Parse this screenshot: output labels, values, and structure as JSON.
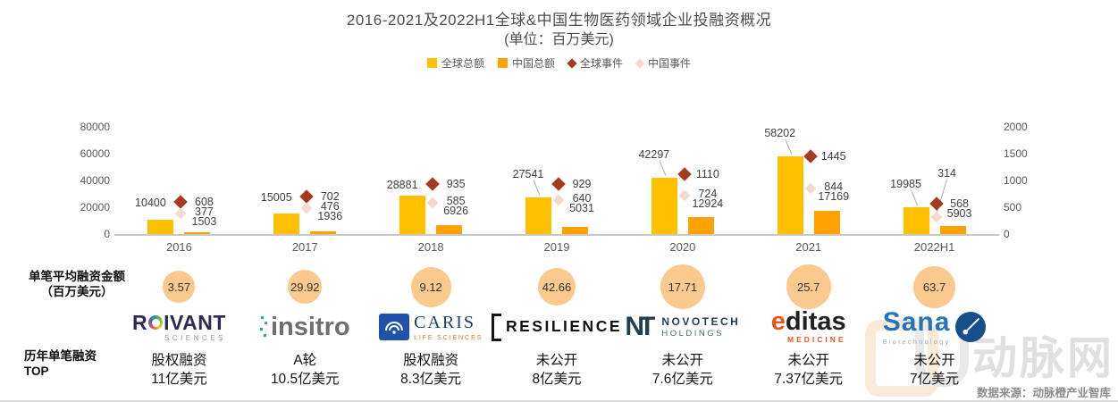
{
  "title": "2016-2021及2022H1全球&中国生物医药领域企业投融资概况",
  "subtitle": "(单位：百万美元)",
  "legend": [
    {
      "label": "全球总额",
      "shape": "square",
      "color": "#FFC000"
    },
    {
      "label": "中国总额",
      "shape": "square",
      "color": "#FFA100"
    },
    {
      "label": "全球事件",
      "shape": "diamond",
      "color": "#A43B1E"
    },
    {
      "label": "中国事件",
      "shape": "diamond",
      "color": "#F7D8CE"
    }
  ],
  "chart_data": {
    "type": "bar",
    "subtype": "dual-axis bars + diamond markers",
    "categories": [
      "2016",
      "2017",
      "2018",
      "2019",
      "2020",
      "2021",
      "2022H1"
    ],
    "series": [
      {
        "name": "全球总额",
        "type": "bar",
        "axis": "left",
        "color": "#FFC000",
        "values": [
          10400,
          15005,
          28881,
          27541,
          42297,
          58202,
          19985
        ]
      },
      {
        "name": "中国总额",
        "type": "bar",
        "axis": "left",
        "color": "#FFA100",
        "values": [
          1503,
          1936,
          6926,
          5031,
          12924,
          17169,
          5903
        ]
      },
      {
        "name": "全球事件",
        "type": "diamond",
        "axis": "right",
        "color": "#A43B1E",
        "values": [
          608,
          702,
          935,
          929,
          1110,
          1445,
          568
        ]
      },
      {
        "name": "中国事件",
        "type": "diamond",
        "axis": "right",
        "color": "#F7D8CE",
        "values": [
          377,
          476,
          585,
          640,
          724,
          844,
          314
        ]
      }
    ],
    "left_axis": {
      "min": 0,
      "max": 80000,
      "ticks": [
        "0",
        "20000",
        "40000",
        "60000",
        "80000"
      ]
    },
    "right_axis": {
      "min": 0,
      "max": 2000,
      "ticks": [
        "0",
        "500",
        "1000",
        "1500",
        "2000"
      ]
    },
    "layout": {
      "grid": false,
      "legend_position": "top",
      "raised_total_labels": [
        3,
        4,
        5,
        6
      ],
      "raised_china_event_labels": [
        6
      ]
    }
  },
  "bottom": {
    "row_labels": {
      "avg_line1": "单笔平均融资金额",
      "avg_line2": "（百万美元）",
      "top_line1": "历年单笔融资",
      "top_line2": "TOP"
    },
    "columns": [
      {
        "avg": "3.57",
        "logo": {
          "style": "roivant",
          "main": "ROIVANT",
          "sub": "SCIENCES"
        },
        "deal1": "股权融资",
        "deal2": "11亿美元"
      },
      {
        "avg": "29.92",
        "logo": {
          "style": "insitro",
          "main": "insitro",
          "sub": ""
        },
        "deal1": "A轮",
        "deal2": "10.5亿美元"
      },
      {
        "avg": "9.12",
        "logo": {
          "style": "caris",
          "main": "CARIS",
          "sub": "LIFE SCIENCES"
        },
        "deal1": "股权融资",
        "deal2": "8.3亿美元"
      },
      {
        "avg": "42.66",
        "logo": {
          "style": "resilience",
          "main": "RESILIENCE",
          "sub": ""
        },
        "deal1": "未公开",
        "deal2": "8亿美元"
      },
      {
        "avg": "17.71",
        "logo": {
          "style": "novotech",
          "main": "NOVOTECH",
          "sub": "HOLDINGS",
          "monogram": "NT"
        },
        "deal1": "未公开",
        "deal2": "7.6亿美元"
      },
      {
        "avg": "25.7",
        "logo": {
          "style": "editas",
          "main": "editas",
          "sub": "MEDICINE"
        },
        "deal1": "未公开",
        "deal2": "7.37亿美元"
      },
      {
        "avg": "63.7",
        "logo": {
          "style": "sana",
          "main": "Sana",
          "sub": "Biotechnology"
        },
        "deal1": "未公开",
        "deal2": "7亿美元"
      }
    ]
  },
  "footer": {
    "source": "数据来源：动脉橙产业智库",
    "watermark": "动脉网"
  }
}
